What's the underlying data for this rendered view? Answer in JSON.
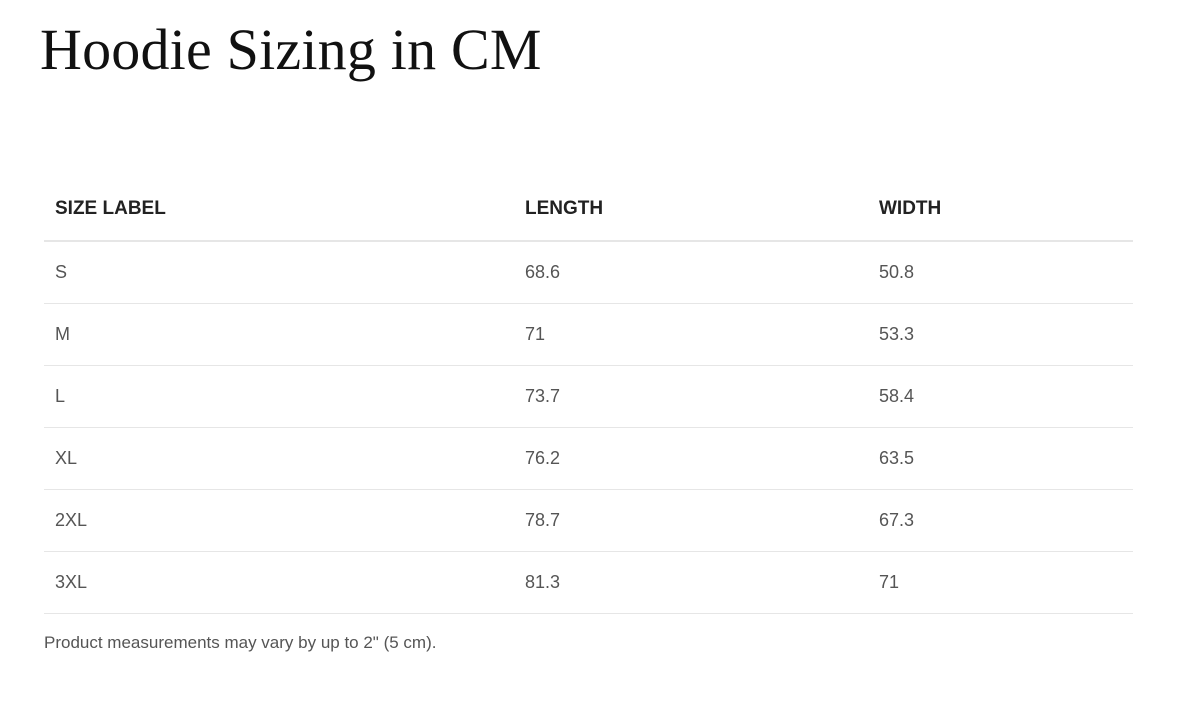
{
  "title": "Hoodie Sizing in CM",
  "table": {
    "headers": [
      "SIZE LABEL",
      "LENGTH",
      "WIDTH"
    ],
    "rows": [
      [
        "S",
        "68.6",
        "50.8"
      ],
      [
        "M",
        "71",
        "53.3"
      ],
      [
        "L",
        "73.7",
        "58.4"
      ],
      [
        "XL",
        "76.2",
        "63.5"
      ],
      [
        "2XL",
        "78.7",
        "67.3"
      ],
      [
        "3XL",
        "81.3",
        "71"
      ]
    ]
  },
  "footnote": "Product measurements may vary by up to 2\" (5 cm)."
}
